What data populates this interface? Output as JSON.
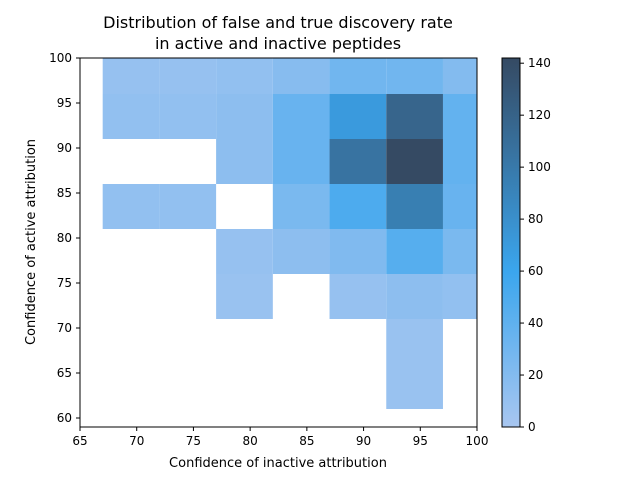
{
  "chart_data": {
    "type": "heatmap",
    "title": "Distribution of false and true discovery rate\nin active and inactive peptides",
    "xlabel": "Confidence of inactive attribution",
    "ylabel": "Confidence of active attribution",
    "xlim": [
      65,
      100
    ],
    "ylim": [
      59,
      100
    ],
    "x_ticks": [
      65,
      70,
      75,
      80,
      85,
      90,
      95,
      100
    ],
    "y_ticks": [
      60,
      65,
      70,
      75,
      80,
      85,
      90,
      95,
      100
    ],
    "x_bin_edges": [
      67,
      72,
      77,
      82,
      87,
      92,
      97,
      100
    ],
    "y_bin_edges": [
      61,
      66,
      71,
      76,
      81,
      86,
      91,
      96,
      100
    ],
    "counts": [
      [
        0,
        0,
        0,
        0,
        0,
        8,
        0
      ],
      [
        0,
        0,
        0,
        0,
        0,
        8,
        0
      ],
      [
        0,
        0,
        8,
        0,
        10,
        15,
        12
      ],
      [
        0,
        0,
        10,
        15,
        22,
        45,
        25
      ],
      [
        12,
        12,
        0,
        25,
        50,
        95,
        35
      ],
      [
        0,
        0,
        15,
        35,
        105,
        142,
        38
      ],
      [
        12,
        12,
        15,
        35,
        70,
        118,
        38
      ],
      [
        10,
        10,
        12,
        18,
        30,
        30,
        20
      ]
    ],
    "colorbar": {
      "min": 0,
      "max": 142,
      "ticks": [
        0,
        20,
        40,
        60,
        80,
        100,
        120,
        140
      ],
      "low_color": "#a8c6f0",
      "mid_color": "#3ba6ee",
      "high_color": "#354a63"
    }
  }
}
